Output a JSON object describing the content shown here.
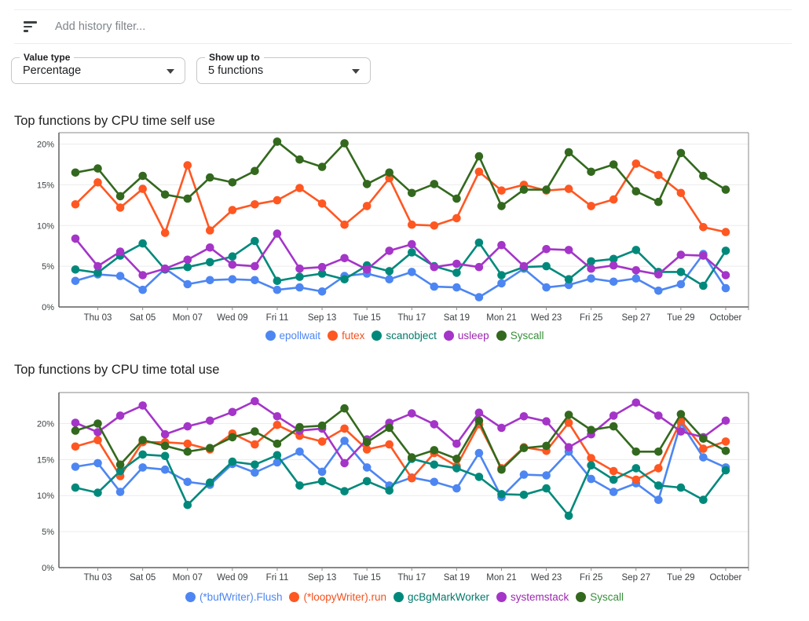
{
  "header": {
    "filter_placeholder": "Add history filter..."
  },
  "controls": {
    "value_type": {
      "label": "Value type",
      "value": "Percentage"
    },
    "show_up_to": {
      "label": "Show up to",
      "value": "5 functions"
    }
  },
  "colors": {
    "blue": "#4d86f2",
    "orange": "#ff5722",
    "teal": "#00897b",
    "purple": "#a435c8",
    "green": "#33691e",
    "gridline": "#ececec",
    "axis": "#616161",
    "border": "#8a8a8a",
    "tick_label": "#3c4043"
  },
  "chart_data": [
    {
      "type": "line",
      "title": "Top functions by CPU time self use",
      "ylabel": "",
      "xlabel": "",
      "grid": true,
      "legend_position": "bottom",
      "ylim": [
        0,
        21.4
      ],
      "yticks": [
        {
          "label": "0%",
          "value": 0
        },
        {
          "label": "5%",
          "value": 5
        },
        {
          "label": "10%",
          "value": 10
        },
        {
          "label": "15%",
          "value": 15
        },
        {
          "label": "20%",
          "value": 20
        }
      ],
      "x_tick_labels": [
        "Thu 03",
        "Sat 05",
        "Mon 07",
        "Wed 09",
        "Fri 11",
        "Sep 13",
        "Tue 15",
        "Thu 17",
        "Sat 19",
        "Mon 21",
        "Wed 23",
        "Fri 25",
        "Sep 27",
        "Tue 29",
        "October"
      ],
      "x_tick_point_indices": [
        1,
        3,
        5,
        7,
        9,
        11,
        13,
        15,
        17,
        19,
        21,
        23,
        25,
        27,
        29
      ],
      "series": [
        {
          "name": "epollwait",
          "color": "#4d86f2",
          "label_color": "#4d86f2",
          "values": [
            3.2,
            4.0,
            3.8,
            2.1,
            4.7,
            2.8,
            3.3,
            3.4,
            3.3,
            2.1,
            2.4,
            1.9,
            3.8,
            4.1,
            3.4,
            4.3,
            2.5,
            2.4,
            1.2,
            2.9,
            4.7,
            2.4,
            2.7,
            3.5,
            3.1,
            3.5,
            2.0,
            2.8,
            6.5,
            2.3
          ]
        },
        {
          "name": "futex",
          "color": "#ff5722",
          "label_color": "#f4511e",
          "values": [
            12.6,
            15.3,
            12.2,
            14.5,
            9.1,
            17.4,
            9.4,
            11.9,
            12.6,
            13.1,
            14.6,
            12.7,
            10.1,
            12.4,
            15.8,
            10.1,
            10.0,
            10.9,
            16.6,
            14.3,
            15.0,
            14.3,
            14.5,
            12.4,
            13.2,
            17.6,
            16.2,
            14.0,
            9.8,
            9.2
          ]
        },
        {
          "name": "scanobject",
          "color": "#00897b",
          "label_color": "#00796b",
          "values": [
            4.6,
            4.2,
            6.3,
            7.8,
            4.6,
            4.9,
            5.5,
            6.2,
            8.1,
            3.2,
            3.7,
            4.1,
            3.4,
            5.1,
            4.4,
            6.7,
            5.0,
            4.2,
            7.9,
            3.9,
            4.9,
            5.0,
            3.4,
            5.6,
            5.9,
            7.0,
            4.3,
            4.3,
            2.6,
            6.9
          ]
        },
        {
          "name": "usleep",
          "color": "#a435c8",
          "label_color": "#9c27b0",
          "values": [
            8.4,
            5.0,
            6.8,
            3.9,
            4.7,
            5.8,
            7.3,
            5.2,
            5.0,
            9.0,
            4.7,
            4.9,
            6.0,
            4.6,
            6.9,
            7.7,
            4.9,
            5.3,
            4.9,
            7.6,
            5.0,
            7.1,
            7.0,
            4.7,
            5.1,
            4.5,
            4.0,
            6.4,
            6.3,
            3.9
          ]
        },
        {
          "name": "Syscall",
          "color": "#33691e",
          "label_color": "#388e3c",
          "values": [
            16.5,
            17.0,
            13.6,
            16.1,
            13.8,
            13.3,
            15.9,
            15.3,
            16.7,
            20.3,
            18.1,
            17.2,
            20.1,
            15.1,
            16.5,
            14.0,
            15.1,
            13.3,
            18.5,
            12.4,
            14.4,
            14.4,
            19.0,
            16.6,
            17.5,
            14.2,
            12.9,
            18.9,
            16.1,
            14.4
          ]
        }
      ]
    },
    {
      "type": "line",
      "title": "Top functions by CPU time total use",
      "ylabel": "",
      "xlabel": "",
      "grid": true,
      "legend_position": "bottom",
      "ylim": [
        0,
        24.3
      ],
      "yticks": [
        {
          "label": "0%",
          "value": 0
        },
        {
          "label": "5%",
          "value": 5
        },
        {
          "label": "10%",
          "value": 10
        },
        {
          "label": "15%",
          "value": 15
        },
        {
          "label": "20%",
          "value": 20
        }
      ],
      "x_tick_labels": [
        "Thu 03",
        "Sat 05",
        "Mon 07",
        "Wed 09",
        "Fri 11",
        "Sep 13",
        "Tue 15",
        "Thu 17",
        "Sat 19",
        "Mon 21",
        "Wed 23",
        "Fri 25",
        "Sep 27",
        "Tue 29",
        "October"
      ],
      "x_tick_point_indices": [
        1,
        3,
        5,
        7,
        9,
        11,
        13,
        15,
        17,
        19,
        21,
        23,
        25,
        27,
        29
      ],
      "series": [
        {
          "name": "(*bufWriter).Flush",
          "color": "#4d86f2",
          "label_color": "#4d86f2",
          "values": [
            14.0,
            14.5,
            10.5,
            13.9,
            13.6,
            11.9,
            11.5,
            14.4,
            13.2,
            14.6,
            16.1,
            13.3,
            17.6,
            13.9,
            11.4,
            12.5,
            11.9,
            11.0,
            15.9,
            9.8,
            12.9,
            12.8,
            16.1,
            12.3,
            10.5,
            11.7,
            9.4,
            20.1,
            15.3,
            13.9
          ]
        },
        {
          "name": "(*loopyWriter).run",
          "color": "#ff5722",
          "label_color": "#f4511e",
          "values": [
            16.8,
            17.7,
            12.7,
            17.4,
            17.4,
            17.2,
            16.4,
            18.6,
            17.1,
            19.8,
            18.3,
            17.5,
            19.3,
            16.4,
            17.1,
            12.4,
            15.9,
            14.1,
            19.9,
            13.8,
            16.7,
            16.2,
            20.1,
            15.2,
            13.4,
            12.2,
            13.8,
            20.4,
            16.5,
            17.5
          ]
        },
        {
          "name": "gcBgMarkWorker",
          "color": "#00897b",
          "label_color": "#00796b",
          "values": [
            11.1,
            10.4,
            13.4,
            15.7,
            15.5,
            8.7,
            11.8,
            14.7,
            14.3,
            15.6,
            11.4,
            12.0,
            10.6,
            12.0,
            10.7,
            15.1,
            14.3,
            13.8,
            12.6,
            10.2,
            10.1,
            11.0,
            7.2,
            14.2,
            12.2,
            13.8,
            11.4,
            11.1,
            9.4,
            13.5
          ]
        },
        {
          "name": "systemstack",
          "color": "#a435c8",
          "label_color": "#9c27b0",
          "values": [
            20.1,
            18.8,
            21.1,
            22.5,
            18.5,
            19.6,
            20.4,
            21.6,
            23.1,
            21.0,
            19.0,
            19.3,
            14.5,
            17.8,
            20.1,
            21.4,
            19.9,
            17.2,
            21.5,
            19.4,
            21.0,
            20.3,
            16.7,
            18.5,
            21.1,
            22.9,
            21.1,
            18.9,
            18.1,
            20.4
          ]
        },
        {
          "name": "Syscall",
          "color": "#33691e",
          "label_color": "#388e3c",
          "values": [
            19.0,
            20.0,
            14.3,
            17.7,
            16.9,
            16.1,
            16.6,
            18.1,
            18.9,
            17.2,
            19.5,
            19.7,
            22.1,
            17.4,
            19.4,
            15.3,
            16.3,
            15.1,
            20.4,
            13.6,
            16.6,
            16.9,
            21.2,
            19.1,
            19.6,
            16.1,
            16.1,
            21.3,
            17.9,
            16.2
          ]
        }
      ]
    }
  ]
}
